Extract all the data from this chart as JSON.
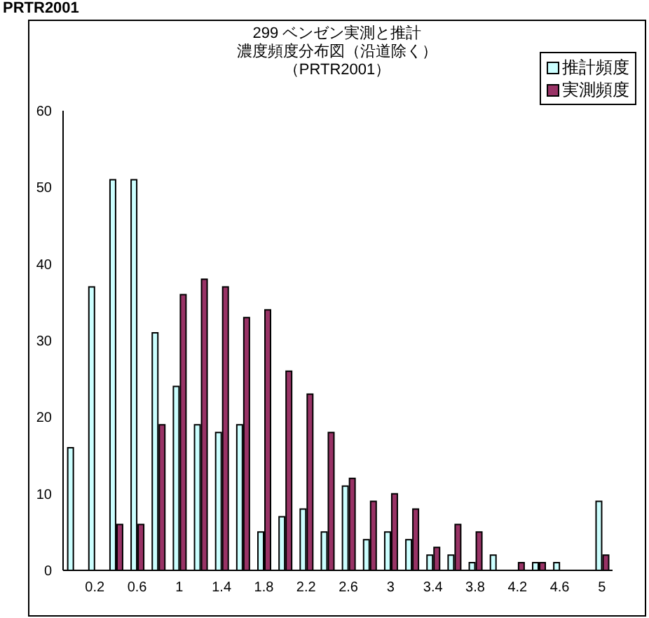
{
  "chart_data": {
    "type": "bar",
    "title": "299 ベンゼン実測と推計",
    "subtitle": "濃度頻度分布図（沿道除く）",
    "annotations": [
      "PRTR2001",
      "（PRTR2001）"
    ],
    "categories": [
      null,
      "0.2",
      null,
      "0.6",
      null,
      "1",
      null,
      "1.4",
      null,
      "1.8",
      null,
      "2.2",
      null,
      "2.6",
      null,
      "3",
      null,
      "3.4",
      null,
      "3.8",
      null,
      "4.2",
      null,
      "4.6",
      null,
      "5"
    ],
    "series": [
      {
        "name": "推計頻度",
        "color": "#ccffff",
        "values": [
          16,
          37,
          51,
          51,
          31,
          24,
          19,
          18,
          19,
          5,
          7,
          8,
          5,
          11,
          4,
          5,
          4,
          2,
          2,
          1,
          2,
          0,
          1,
          1,
          0,
          9
        ]
      },
      {
        "name": "実測頻度",
        "color": "#993366",
        "values": [
          0,
          0,
          6,
          6,
          19,
          36,
          38,
          37,
          33,
          34,
          26,
          23,
          18,
          12,
          9,
          10,
          8,
          3,
          6,
          5,
          0,
          1,
          1,
          0,
          0,
          2
        ]
      }
    ],
    "ylim": [
      0,
      60
    ],
    "yticks": [
      0,
      10,
      20,
      30,
      40,
      50,
      60
    ],
    "legend": "top right"
  }
}
